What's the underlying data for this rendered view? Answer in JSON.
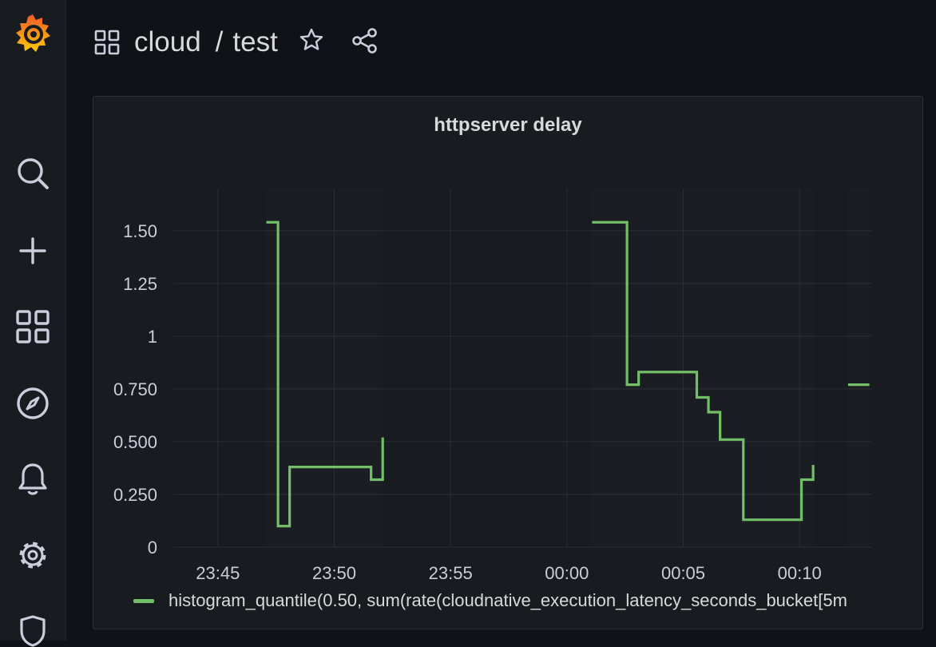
{
  "app": {
    "brand_color": "#f46800",
    "accent_color": "#73bf69"
  },
  "sidebar": {
    "items": [
      {
        "icon": "grafana-logo-icon"
      },
      {
        "icon": "search-icon"
      },
      {
        "icon": "plus-icon"
      },
      {
        "icon": "dashboards-icon"
      },
      {
        "icon": "explore-compass-icon"
      },
      {
        "icon": "bell-icon"
      },
      {
        "icon": "gear-icon"
      },
      {
        "icon": "shield-icon"
      }
    ]
  },
  "header": {
    "folder": "cloud",
    "separator": "/",
    "dashboard": "test",
    "icons": [
      "dashboards-icon",
      "star-icon",
      "share-icon"
    ]
  },
  "panel": {
    "title": "httpserver delay",
    "legend_label": "histogram_quantile(0.50, sum(rate(cloudnative_execution_latency_seconds_bucket[5m"
  },
  "chart_data": {
    "type": "line",
    "title": "httpserver delay",
    "interpolation": "step-after",
    "x_ticks": [
      "23:45",
      "23:50",
      "23:55",
      "00:00",
      "00:05",
      "00:10"
    ],
    "y_ticks": [
      "0",
      "0.250",
      "0.500",
      "0.750",
      "1",
      "1.25",
      "1.50"
    ],
    "xlim": [
      "23:43:05",
      "00:13:05"
    ],
    "ylim": [
      0,
      1.7
    ],
    "grid": true,
    "legend_position": "bottom",
    "series": [
      {
        "name": "histogram_quantile(0.50, sum(rate(cloudnative_execution_latency_seconds_bucket[5m",
        "color": "#73bf69",
        "segments": [
          [
            {
              "t": "23:47:05",
              "v": 1.54
            },
            {
              "t": "23:47:35",
              "v": 0.1
            },
            {
              "t": "23:48:05",
              "v": 0.38
            },
            {
              "t": "23:51:35",
              "v": 0.32
            },
            {
              "t": "23:52:05",
              "v": 0.52
            },
            {
              "t": "23:52:05",
              "v": 0.52
            }
          ],
          [
            {
              "t": "00:01:05",
              "v": 1.54
            },
            {
              "t": "00:02:35",
              "v": 0.77
            },
            {
              "t": "00:03:05",
              "v": 0.83
            },
            {
              "t": "00:05:35",
              "v": 0.71
            },
            {
              "t": "00:06:05",
              "v": 0.64
            },
            {
              "t": "00:06:35",
              "v": 0.51
            },
            {
              "t": "00:07:35",
              "v": 0.13
            },
            {
              "t": "00:10:05",
              "v": 0.32
            },
            {
              "t": "00:10:35",
              "v": 0.39
            },
            {
              "t": "00:10:35",
              "v": 0.39
            }
          ],
          [
            {
              "t": "00:12:05",
              "v": 0.77
            },
            {
              "t": "00:13:00",
              "v": 0.77
            }
          ]
        ]
      }
    ]
  }
}
